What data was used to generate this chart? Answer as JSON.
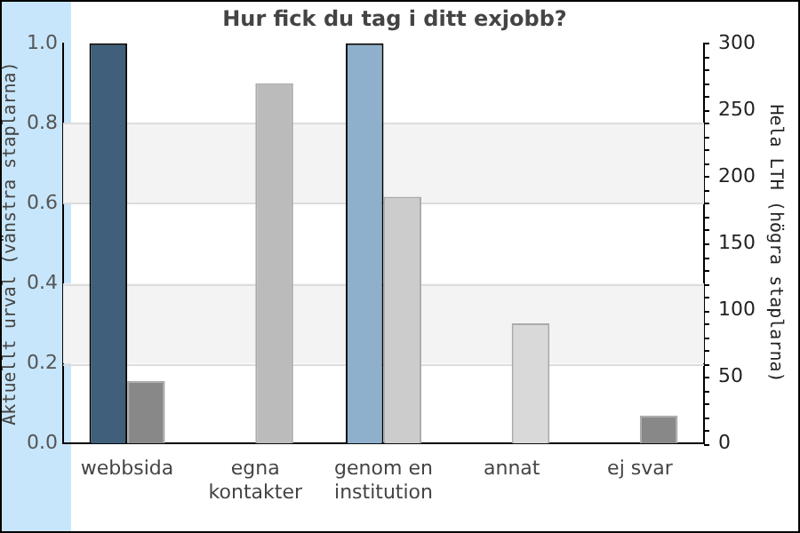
{
  "chart_data": {
    "type": "bar",
    "title": "Hur fick du tag i ditt exjobb?",
    "ylabel": "Aktuellt urval (vänstra staplarna)",
    "y2label": "Hela LTH (högra staplarna)",
    "categories": [
      "webbsida",
      "egna kontakter",
      "genom en institution",
      "annat",
      "ej svar"
    ],
    "series": [
      {
        "colors": [
          "#3f5f7a",
          "#3f5f7a",
          "#8fb0cc",
          "#8fb0cc",
          "#8fb0cc"
        ],
        "values": [
          1,
          0,
          1,
          0,
          0
        ]
      },
      {
        "axis": "y2",
        "colors": [
          "#888888",
          "#bbbbbb",
          "#cccccc",
          "#d9d9d9",
          "#888888"
        ],
        "values": [
          47,
          270,
          185,
          90,
          21
        ]
      }
    ],
    "ylim": [
      0,
      1
    ],
    "yticks": [
      {
        "value": 0,
        "label": "0.0"
      },
      {
        "value": 0.2,
        "label": "0.2"
      },
      {
        "value": 0.4,
        "label": "0.4"
      },
      {
        "value": 0.6,
        "label": "0.6"
      },
      {
        "value": 0.8,
        "label": "0.8"
      },
      {
        "value": 1,
        "label": "1.0"
      }
    ],
    "y2lim": [
      0,
      300
    ],
    "y2ticks": [
      0,
      50,
      100,
      150,
      200,
      250,
      300
    ],
    "grid": "y",
    "legend": false
  }
}
